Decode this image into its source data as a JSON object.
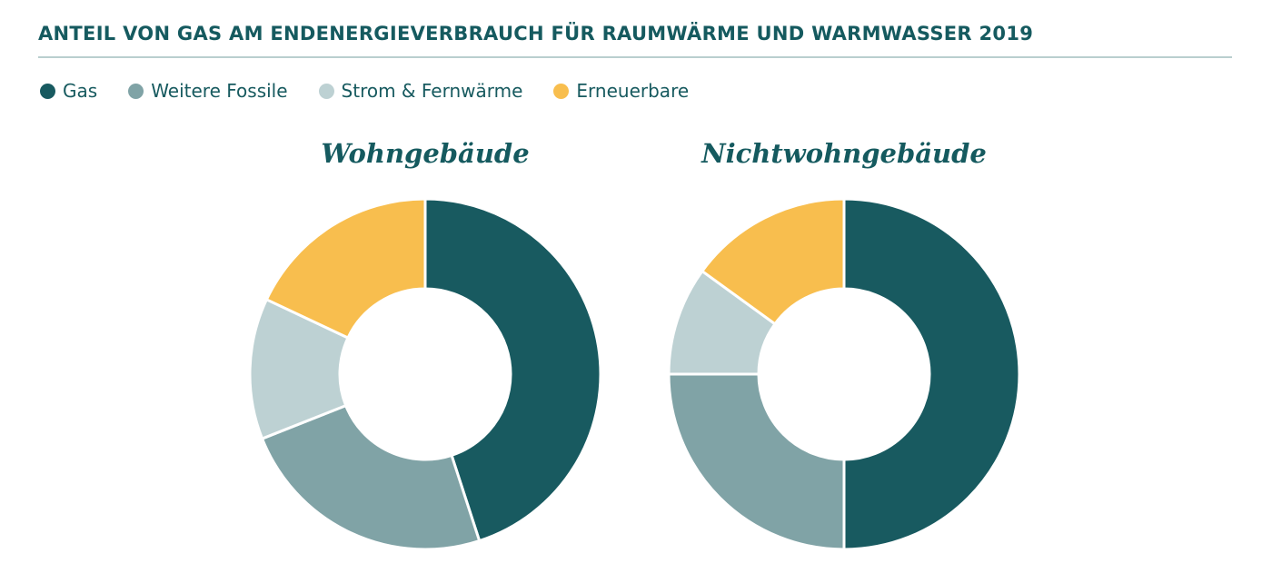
{
  "title": "ANTEIL VON GAS AM ENDENERGIEVERBRAUCH FÜR RAUMWÄRME UND WARMWASSER 2019",
  "legend": [
    {
      "label": "Gas",
      "color": "#185a60"
    },
    {
      "label": "Weitere Fossile",
      "color": "#80a3a6"
    },
    {
      "label": "Strom & Fernwärme",
      "color": "#bdd1d3"
    },
    {
      "label": "Erneuerbare",
      "color": "#f8be4e"
    }
  ],
  "chart_data": [
    {
      "type": "pie",
      "title": "Wohngebäude",
      "categories": [
        "Gas",
        "Weitere Fossile",
        "Strom & Fernwärme",
        "Erneuerbare"
      ],
      "values": [
        45,
        24,
        13,
        18
      ]
    },
    {
      "type": "pie",
      "title": "Nichtwohngebäude",
      "categories": [
        "Gas",
        "Weitere Fossile",
        "Strom & Fernwärme",
        "Erneuerbare"
      ],
      "values": [
        50,
        25,
        10,
        15
      ]
    }
  ]
}
